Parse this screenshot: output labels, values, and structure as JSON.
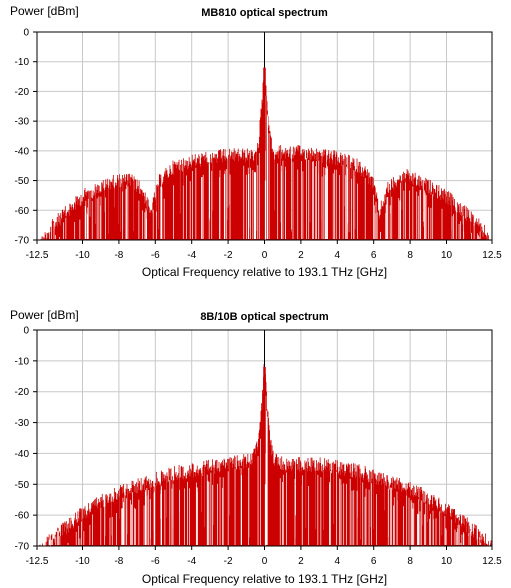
{
  "chart_data": [
    {
      "type": "area",
      "title": "MB810 optical spectrum",
      "ylabel": "Power [dBm]",
      "xlabel": "Optical Frequency relative to 193.1 THz [GHz]",
      "xlim": [
        -12.5,
        12.5
      ],
      "ylim": [
        -70,
        0
      ],
      "xticks": [
        -12.5,
        -10,
        -8,
        -6,
        -4,
        -2,
        0,
        2,
        4,
        6,
        8,
        10,
        12.5
      ],
      "yticks": [
        0,
        -10,
        -20,
        -30,
        -40,
        -50,
        -60,
        -70
      ],
      "grid": true,
      "color": "#cc0000",
      "series": [
        {
          "envelope": [
            [
              -12.5,
              -70
            ],
            [
              -12.2,
              -68
            ],
            [
              -11.8,
              -64
            ],
            [
              -11.2,
              -60
            ],
            [
              -10.5,
              -56
            ],
            [
              -9.8,
              -52
            ],
            [
              -9.0,
              -50
            ],
            [
              -8.4,
              -48
            ],
            [
              -7.8,
              -47
            ],
            [
              -7.2,
              -48
            ],
            [
              -6.7,
              -51
            ],
            [
              -6.4,
              -56
            ],
            [
              -6.3,
              -59
            ],
            [
              -6.15,
              -56
            ],
            [
              -5.8,
              -48
            ],
            [
              -5.0,
              -43
            ],
            [
              -4.0,
              -41
            ],
            [
              -3.0,
              -40
            ],
            [
              -2.0,
              -39
            ],
            [
              -1.0,
              -39
            ],
            [
              -0.5,
              -40
            ],
            [
              -0.3,
              -33
            ],
            [
              -0.12,
              -20
            ],
            [
              0,
              -8
            ],
            [
              0.12,
              -20
            ],
            [
              0.3,
              -33
            ],
            [
              0.5,
              -38
            ],
            [
              1.0,
              -38
            ],
            [
              2.0,
              -38
            ],
            [
              3.0,
              -39
            ],
            [
              4.0,
              -40
            ],
            [
              5.0,
              -42
            ],
            [
              5.6,
              -45
            ],
            [
              6.0,
              -49
            ],
            [
              6.2,
              -55
            ],
            [
              6.3,
              -59
            ],
            [
              6.45,
              -56
            ],
            [
              6.8,
              -50
            ],
            [
              7.3,
              -47
            ],
            [
              7.8,
              -46
            ],
            [
              8.5,
              -48
            ],
            [
              9.2,
              -50
            ],
            [
              10.0,
              -53
            ],
            [
              10.8,
              -57
            ],
            [
              11.5,
              -61
            ],
            [
              12.0,
              -64
            ],
            [
              12.3,
              -67
            ],
            [
              12.5,
              -68
            ]
          ],
          "carrier_peak": [
            0,
            0
          ]
        }
      ]
    },
    {
      "type": "area",
      "title": "8B/10B optical spectrum",
      "ylabel": "Power [dBm]",
      "xlabel": "Optical Frequency relative to 193.1 THz [GHz]",
      "xlim": [
        -12.5,
        12.5
      ],
      "ylim": [
        -70,
        0
      ],
      "xticks": [
        -12.5,
        -10,
        -8,
        -6,
        -4,
        -2,
        0,
        2,
        4,
        6,
        8,
        10,
        12.5
      ],
      "yticks": [
        0,
        -10,
        -20,
        -30,
        -40,
        -50,
        -60,
        -70
      ],
      "grid": true,
      "color": "#cc0000",
      "series": [
        {
          "envelope": [
            [
              -12.5,
              -70
            ],
            [
              -12.0,
              -67
            ],
            [
              -11.0,
              -62
            ],
            [
              -10.0,
              -57
            ],
            [
              -9.0,
              -53
            ],
            [
              -8.0,
              -50
            ],
            [
              -7.0,
              -48
            ],
            [
              -6.0,
              -46
            ],
            [
              -5.0,
              -44
            ],
            [
              -4.0,
              -43
            ],
            [
              -3.0,
              -42
            ],
            [
              -2.0,
              -41
            ],
            [
              -1.0,
              -40
            ],
            [
              -0.5,
              -38
            ],
            [
              -0.3,
              -33
            ],
            [
              -0.12,
              -20
            ],
            [
              0,
              -8
            ],
            [
              0.12,
              -20
            ],
            [
              0.3,
              -33
            ],
            [
              0.5,
              -39
            ],
            [
              1.0,
              -41
            ],
            [
              2.0,
              -41
            ],
            [
              3.0,
              -41
            ],
            [
              4.0,
              -42
            ],
            [
              5.0,
              -43
            ],
            [
              6.0,
              -45
            ],
            [
              7.0,
              -47
            ],
            [
              8.0,
              -49
            ],
            [
              9.0,
              -52
            ],
            [
              10.0,
              -56
            ],
            [
              11.0,
              -60
            ],
            [
              12.0,
              -65
            ],
            [
              12.5,
              -68
            ]
          ],
          "carrier_peak": [
            0,
            0
          ]
        }
      ]
    }
  ]
}
